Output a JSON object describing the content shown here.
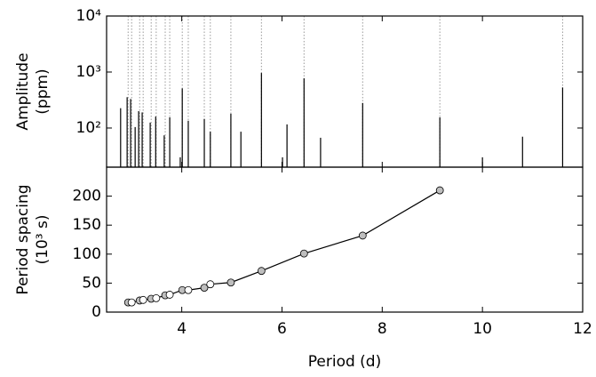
{
  "chart_data": [
    {
      "type": "stem",
      "ylabel": [
        "Amplitude",
        "(ppm)"
      ],
      "x": [
        2.78,
        2.91,
        2.98,
        3.07,
        3.14,
        3.21,
        3.37,
        3.48,
        3.65,
        3.76,
        3.97,
        4.01,
        4.13,
        4.45,
        4.57,
        4.98,
        5.18,
        5.59,
        6.01,
        6.1,
        6.44,
        6.77,
        7.61,
        9.15,
        10.0,
        10.8,
        11.6
      ],
      "values": [
        226,
        355,
        330,
        104,
        200,
        190,
        125,
        160,
        74,
        155,
        30,
        510,
        135,
        145,
        86,
        180,
        86,
        960,
        30,
        116,
        770,
        67,
        280,
        155,
        30,
        70,
        530
      ],
      "color": "#000000",
      "guide_x": [
        2.93,
        3.0,
        3.16,
        3.23,
        3.39,
        3.49,
        3.67,
        3.76,
        4.01,
        4.13,
        4.45,
        4.57,
        4.98,
        5.59,
        6.44,
        7.61,
        9.15,
        11.6
      ],
      "guide_color": "#9a9a9a",
      "xlim": [
        2.5,
        12
      ],
      "xticks": [
        4,
        6,
        8,
        10,
        12
      ],
      "log_y": true,
      "ylim": [
        20,
        10000
      ],
      "yticks": [
        {
          "value": 100,
          "label": "10²"
        },
        {
          "value": 1000,
          "label": "10³"
        },
        {
          "value": 10000,
          "label": "10⁴"
        }
      ]
    },
    {
      "type": "line",
      "ylabel": [
        "Period spacing",
        "(10³ s)"
      ],
      "xlabel": "Period (d)",
      "x": [
        2.93,
        3.0,
        3.16,
        3.23,
        3.39,
        3.49,
        3.67,
        3.76,
        4.01,
        4.13,
        4.45,
        4.57,
        4.98,
        5.59,
        6.44,
        7.61,
        9.15
      ],
      "values": [
        16.7,
        16.7,
        20,
        21,
        23,
        24,
        29,
        30,
        38,
        38,
        42,
        48,
        51,
        71,
        101,
        132,
        210
      ],
      "marker_fills": [
        "#bebebe",
        "#ffffff",
        "#bebebe",
        "#ffffff",
        "#bebebe",
        "#ffffff",
        "#bebebe",
        "#ffffff",
        "#bebebe",
        "#ffffff",
        "#bebebe",
        "#ffffff",
        "#bebebe",
        "#bebebe",
        "#bebebe",
        "#bebebe",
        "#bebebe"
      ],
      "color": "#000000",
      "xlim": [
        2.5,
        12
      ],
      "xticks": [
        4,
        6,
        8,
        10,
        12
      ],
      "ylim": [
        0,
        250
      ],
      "yticks": [
        0,
        50,
        100,
        150,
        200
      ]
    }
  ]
}
